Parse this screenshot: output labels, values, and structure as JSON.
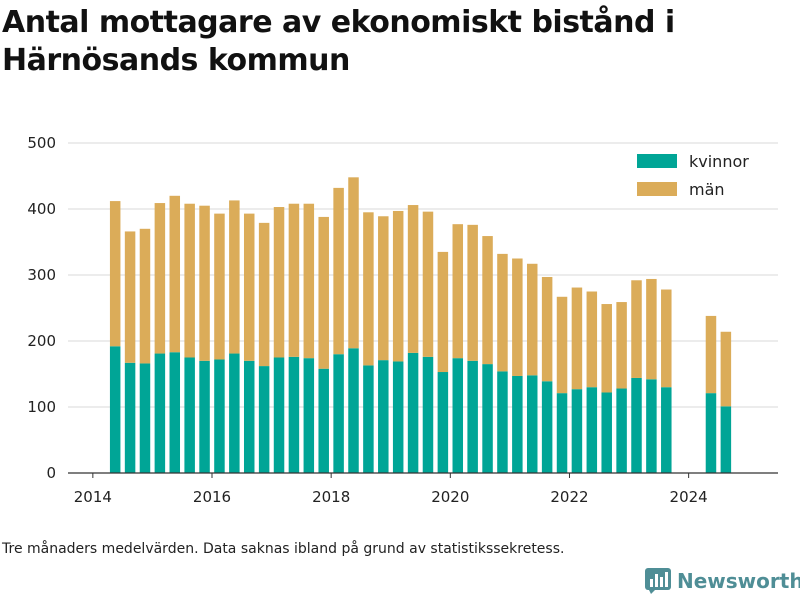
{
  "header": {
    "title_line1": "Antal mottagare av ekonomiskt bistånd i",
    "title_line2": "Härnösands kommun"
  },
  "footer": {
    "note": "Tre månaders medelvärden. Data saknas ibland på grund av statistikssekretess.",
    "brand": "Newsworthy",
    "brand_icon": "bar-chart-logo-icon"
  },
  "colors": {
    "kvinnor": "#00a596",
    "man": "#dbac59",
    "grid": "#d9d9d9",
    "axis": "#333333"
  },
  "chart_data": {
    "type": "bar",
    "stacked": true,
    "title": "Antal mottagare av ekonomiskt bistånd i Härnösands kommun",
    "x_ticks": [
      "2014",
      "2016",
      "2018",
      "2020",
      "2022",
      "2024"
    ],
    "y_ticks": [
      "0",
      "100",
      "200",
      "300",
      "400",
      "500"
    ],
    "xlim": [
      2013.583,
      2025.5
    ],
    "ylim": [
      0,
      500
    ],
    "grid": "horizontal",
    "legend_position": "top-right",
    "x": [
      2014.375,
      2014.625,
      2014.875,
      2015.125,
      2015.375,
      2015.625,
      2015.875,
      2016.125,
      2016.375,
      2016.625,
      2016.875,
      2017.125,
      2017.375,
      2017.625,
      2017.875,
      2018.125,
      2018.375,
      2018.625,
      2018.875,
      2019.125,
      2019.375,
      2019.625,
      2019.875,
      2020.125,
      2020.375,
      2020.625,
      2020.875,
      2021.125,
      2021.375,
      2021.625,
      2021.875,
      2022.125,
      2022.375,
      2022.625,
      2022.875,
      2023.125,
      2023.375,
      2023.625,
      2024.375,
      2024.625
    ],
    "series": [
      {
        "name": "kvinnor",
        "values": [
          192,
          167,
          166,
          181,
          183,
          175,
          170,
          172,
          181,
          170,
          162,
          175,
          176,
          174,
          158,
          180,
          189,
          163,
          171,
          169,
          182,
          176,
          153,
          174,
          170,
          165,
          154,
          147,
          148,
          139,
          121,
          127,
          130,
          122,
          128,
          144,
          142,
          130,
          121,
          101
        ]
      },
      {
        "name": "män",
        "values": [
          220,
          199,
          204,
          228,
          237,
          233,
          235,
          221,
          232,
          223,
          217,
          228,
          232,
          234,
          230,
          252,
          259,
          232,
          218,
          228,
          224,
          220,
          182,
          203,
          206,
          194,
          178,
          178,
          169,
          158,
          146,
          154,
          145,
          134,
          131,
          148,
          152,
          148,
          117,
          113
        ]
      }
    ]
  }
}
